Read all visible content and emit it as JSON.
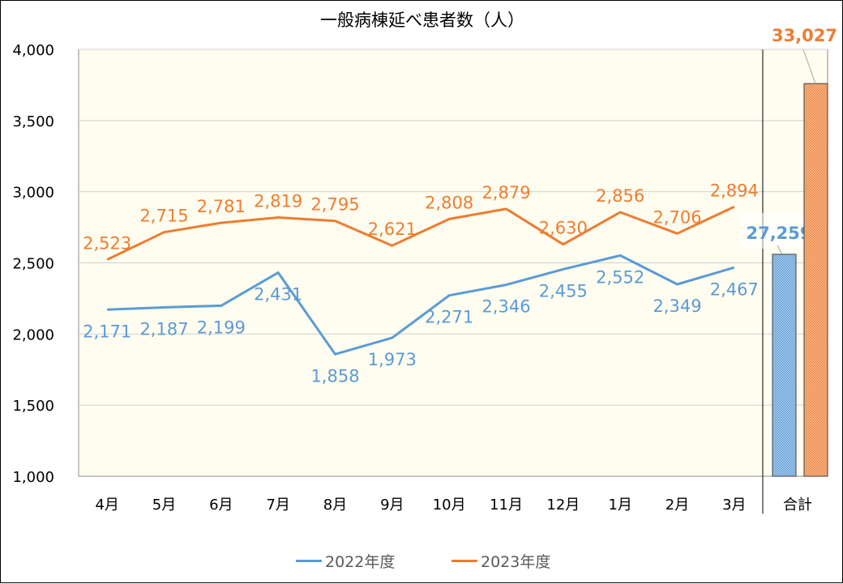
{
  "chart_data": {
    "type": "line",
    "title": "一般病棟延べ患者数（人）",
    "categories": [
      "4月",
      "5月",
      "6月",
      "7月",
      "8月",
      "9月",
      "10月",
      "11月",
      "12月",
      "1月",
      "2月",
      "3月"
    ],
    "series": [
      {
        "name": "2022年度",
        "color": "#5B9BD5",
        "values": [
          2171,
          2187,
          2199,
          2431,
          1858,
          1973,
          2271,
          2346,
          2455,
          2552,
          2349,
          2467
        ],
        "labels": [
          "2,171",
          "2,187",
          "2,199",
          "2,431",
          "1,858",
          "1,973",
          "2,271",
          "2,346",
          "2,455",
          "2,552",
          "2,349",
          "2,467"
        ]
      },
      {
        "name": "2023年度",
        "color": "#ED7D31",
        "values": [
          2523,
          2715,
          2781,
          2819,
          2795,
          2621,
          2808,
          2879,
          2630,
          2856,
          2706,
          2894
        ],
        "labels": [
          "2,523",
          "2,715",
          "2,781",
          "2,819",
          "2,795",
          "2,621",
          "2,808",
          "2,879",
          "2,630",
          "2,856",
          "2,706",
          "2,894"
        ]
      }
    ],
    "ylim": [
      1000,
      4000
    ],
    "yticks": [
      1000,
      1500,
      2000,
      2500,
      3000,
      3500,
      4000
    ],
    "ytick_labels": [
      "1,000",
      "1,500",
      "2,000",
      "2,500",
      "3,000",
      "3,500",
      "4,000"
    ],
    "grid": true,
    "legend_position": "bottom",
    "total": {
      "category": "合計",
      "values": [
        27259,
        33027
      ],
      "labels": [
        "27,259",
        "33,027"
      ],
      "bar_levels": [
        0.52,
        0.92
      ]
    },
    "colors": {
      "plot_background": "#FFFDF0",
      "gridline": "#D0D0D0",
      "axis_text": "#000000"
    }
  }
}
